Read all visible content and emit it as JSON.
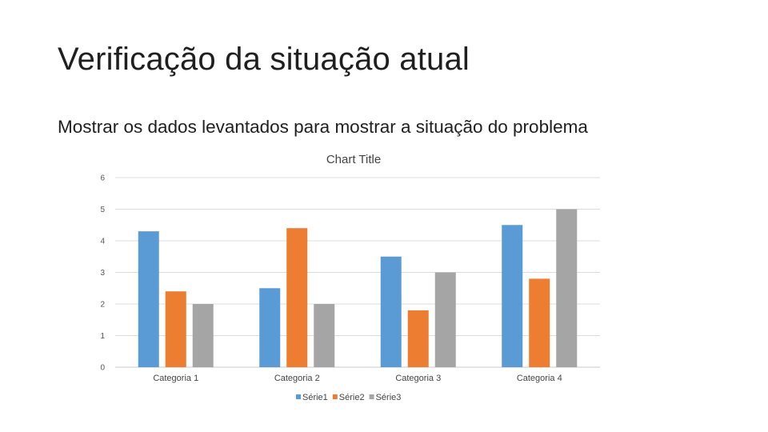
{
  "slide": {
    "title": "Verificação da situação atual",
    "body": "Mostrar os dados levantados para mostrar a situação do problema"
  },
  "chart_data": {
    "type": "bar",
    "title": "Chart Title",
    "categories": [
      "Categoria 1",
      "Categoria 2",
      "Categoria 3",
      "Categoria 4"
    ],
    "series": [
      {
        "name": "Série1",
        "color": "#5b9bd5",
        "values": [
          4.3,
          2.5,
          3.5,
          4.5
        ]
      },
      {
        "name": "Série2",
        "color": "#ed7d31",
        "values": [
          2.4,
          4.4,
          1.8,
          2.8
        ]
      },
      {
        "name": "Série3",
        "color": "#a5a5a5",
        "values": [
          2.0,
          2.0,
          3.0,
          5.0
        ]
      }
    ],
    "yticks": [
      "0",
      "1",
      "2",
      "3",
      "4",
      "5",
      "6"
    ],
    "ylim": [
      0,
      6
    ],
    "grid": true,
    "legend": "bottom"
  }
}
